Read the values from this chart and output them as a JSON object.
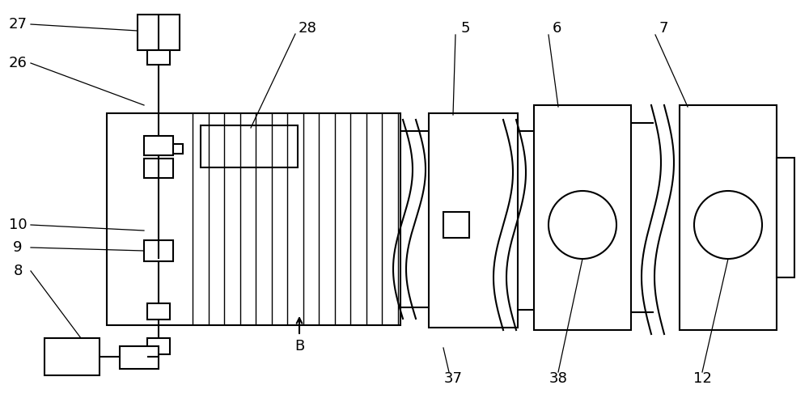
{
  "bg_color": "#ffffff",
  "line_color": "#000000",
  "lw": 1.5,
  "figsize": [
    10.0,
    5.18
  ],
  "dpi": 100
}
